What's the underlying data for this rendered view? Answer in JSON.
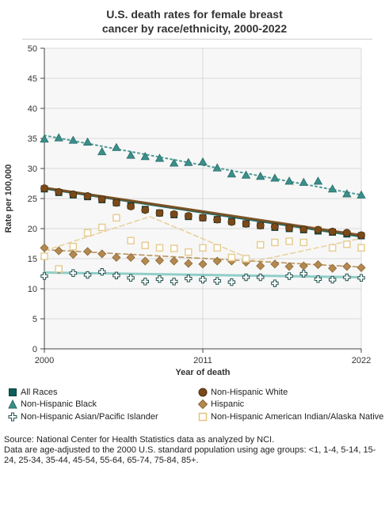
{
  "title_line1": "U.S. death rates for female breast",
  "title_line2": "cancer by race/ethnicity, 2000-2022",
  "source": "Source: National Center for Health Statistics data as analyzed by NCI.",
  "footnote": "Data are age-adjusted to the 2000 U.S. standard population using age groups: <1, 1-4, 5-14, 15-24, 25-34, 35-44, 45-54, 55-64, 65-74, 75-84, 85+.",
  "chart_data": {
    "type": "line",
    "title": "U.S. death rates for female breast cancer by race/ethnicity, 2000-2022",
    "xlabel": "Year of death",
    "ylabel": "Rate per 100,000",
    "xlim": [
      2000,
      2022
    ],
    "ylim": [
      0,
      50
    ],
    "x_ticks": [
      "2000",
      "2011",
      "2022"
    ],
    "y_ticks": [
      "0",
      "5",
      "10",
      "15",
      "20",
      "25",
      "30",
      "35",
      "40",
      "45",
      "50"
    ],
    "grid": true,
    "legend_position": "bottom",
    "x": [
      2000,
      2001,
      2002,
      2003,
      2004,
      2005,
      2006,
      2007,
      2008,
      2009,
      2010,
      2011,
      2012,
      2013,
      2014,
      2015,
      2016,
      2017,
      2018,
      2019,
      2020,
      2021,
      2022
    ],
    "series": [
      {
        "name": "All Races",
        "marker": "square",
        "color": "#0d5e5a",
        "line_style": "solid",
        "values": [
          26.6,
          26.0,
          25.6,
          25.3,
          24.8,
          24.3,
          23.8,
          23.2,
          22.6,
          22.3,
          22.0,
          21.8,
          21.5,
          21.2,
          20.8,
          20.5,
          20.2,
          20.0,
          19.8,
          19.6,
          19.4,
          19.1,
          18.8
        ],
        "trend": [
          26.7,
          18.7
        ]
      },
      {
        "name": "Non-Hispanic White",
        "marker": "circle",
        "color": "#7a4a1a",
        "line_style": "solid",
        "values": [
          26.7,
          26.1,
          25.7,
          25.4,
          24.9,
          24.3,
          23.7,
          23.1,
          22.6,
          22.4,
          22.1,
          21.8,
          21.5,
          21.1,
          20.8,
          20.5,
          20.3,
          20.1,
          19.9,
          19.8,
          19.5,
          19.3,
          18.9
        ],
        "trend": [
          26.8,
          18.9
        ]
      },
      {
        "name": "Non-Hispanic Black",
        "marker": "triangle",
        "color": "#3a8f8a",
        "line_style": "dotted",
        "values": [
          34.9,
          35.1,
          34.7,
          34.4,
          32.8,
          33.5,
          32.2,
          32.0,
          31.7,
          30.9,
          31.0,
          31.1,
          30.1,
          29.1,
          28.9,
          28.7,
          28.4,
          27.9,
          27.7,
          27.9,
          26.6,
          25.8,
          25.6
        ],
        "trend": [
          35.5,
          25.6
        ]
      },
      {
        "name": "Hispanic",
        "marker": "diamond",
        "color": "#b3894f",
        "line_style": "dashed",
        "values": [
          16.8,
          16.3,
          15.7,
          16.2,
          15.8,
          15.2,
          15.2,
          14.6,
          14.7,
          14.6,
          14.2,
          14.1,
          14.6,
          14.6,
          14.4,
          13.8,
          14.1,
          13.7,
          13.8,
          14.0,
          13.4,
          13.7,
          13.5
        ],
        "trend": [
          16.5,
          13.6
        ]
      },
      {
        "name": "Non-Hispanic Asian/Pacific Islander",
        "marker": "plus",
        "color": "#7ec7c0",
        "line_style": "solid",
        "values": [
          12.1,
          13.2,
          12.6,
          12.3,
          12.8,
          12.2,
          11.8,
          11.2,
          11.6,
          11.2,
          11.7,
          11.5,
          11.3,
          11.1,
          11.9,
          11.9,
          10.9,
          12.1,
          12.5,
          11.6,
          11.5,
          11.9,
          11.8
        ],
        "trend": [
          12.7,
          11.9
        ]
      },
      {
        "name": "Non-Hispanic American Indian/Alaska Native",
        "marker": "open-square",
        "color": "#e7cd93",
        "line_style": "dashed",
        "values": [
          15.4,
          13.3,
          17.0,
          19.3,
          20.2,
          21.8,
          18.0,
          17.2,
          16.8,
          16.7,
          16.1,
          16.8,
          16.8,
          15.2,
          15.0,
          17.3,
          17.7,
          17.9,
          17.7,
          19.8,
          16.8,
          17.4,
          16.8
        ],
        "trend": [
          16.3,
          22.0,
          14.6,
          18.4
        ]
      }
    ]
  }
}
